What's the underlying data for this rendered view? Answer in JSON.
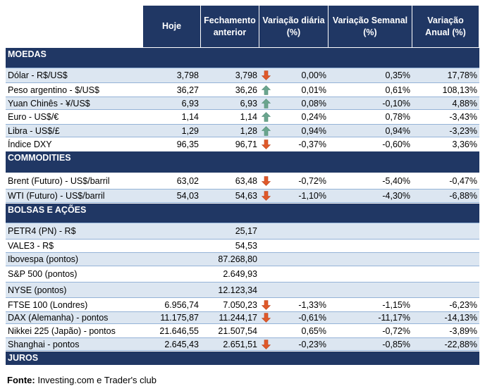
{
  "header": {
    "columns": [
      "Hoje",
      "Fechamento anterior",
      "Variação diária (%)",
      "Variação Semanal (%)",
      "Variação Anual (%)"
    ]
  },
  "sections": [
    {
      "title": "MOEDAS",
      "rows": [
        {
          "cells": [
            "Dólar - R$/US$",
            "3,798",
            "3,798",
            "0,00%",
            "0,35%",
            "17,78%"
          ],
          "arrow": "down"
        },
        {
          "cells": [
            "Peso argentino - $/US$",
            "36,27",
            "36,26",
            "0,01%",
            "0,61%",
            "108,13%"
          ],
          "arrow": "up"
        },
        {
          "cells": [
            "Yuan Chinês - ¥/US$",
            "6,93",
            "6,93",
            "0,08%",
            "-0,10%",
            "4,88%"
          ],
          "arrow": "up"
        },
        {
          "cells": [
            "Euro - US$/€",
            "1,14",
            "1,14",
            "0,24%",
            "0,78%",
            "-3,43%"
          ],
          "arrow": "up"
        },
        {
          "cells": [
            "Libra - US$/£",
            "1,29",
            "1,28",
            "0,94%",
            "0,94%",
            "-3,23%"
          ],
          "arrow": "up"
        },
        {
          "cells": [
            "Índice DXY",
            "96,35",
            "96,71",
            "-0,37%",
            "-0,60%",
            "3,36%"
          ],
          "arrow": "down"
        }
      ]
    },
    {
      "title": "COMMODITIES",
      "rows": [
        {
          "cells": [
            "Brent (Futuro) - US$/barril",
            "63,02",
            "63,48",
            "-0,72%",
            "-5,40%",
            "-0,47%"
          ],
          "arrow": "down"
        },
        {
          "cells": [
            "WTI (Futuro) - US$/barril",
            "54,03",
            "54,63",
            "-1,10%",
            "-4,30%",
            "-6,88%"
          ],
          "arrow": "down"
        }
      ]
    },
    {
      "title": "BOLSAS E AÇÕES",
      "rows": [
        {
          "cells": [
            "PETR4 (PN) - R$",
            null,
            "25,17",
            null,
            null,
            null
          ]
        },
        {
          "cells": [
            "VALE3 - R$",
            null,
            "54,53",
            null,
            null,
            null
          ]
        },
        {
          "cells": [
            "Ibovespa (pontos)",
            null,
            "87.268,80",
            null,
            null,
            null
          ]
        },
        {
          "cells": [
            "S&P 500 (pontos)",
            null,
            "2.649,93",
            null,
            null,
            null
          ]
        },
        {
          "cells": [
            "NYSE (pontos)",
            null,
            "12.123,34",
            null,
            null,
            null
          ]
        },
        {
          "cells": [
            "FTSE 100 (Londres)",
            "6.956,74",
            "7.050,23",
            "-1,33%",
            "-1,15%",
            "-6,23%"
          ],
          "arrow": "down"
        },
        {
          "cells": [
            "DAX (Alemanha) - pontos",
            "11.175,87",
            "11.244,17",
            "-0,61%",
            "-11,17%",
            "-14,13%"
          ],
          "arrow": "down"
        },
        {
          "cells": [
            "Nikkei 225 (Japão) - pontos",
            "21.646,55",
            "21.507,54",
            "0,65%",
            "-0,72%",
            "-3,89%"
          ]
        },
        {
          "cells": [
            "Shanghai - pontos",
            "2.645,43",
            "2.651,51",
            "-0,23%",
            "-0,85%",
            "-22,88%"
          ],
          "arrow": "down"
        }
      ]
    },
    {
      "title": "JUROS",
      "rows": []
    }
  ],
  "footer": {
    "label": "Fonte:",
    "text": "Investing.com e Trader's club"
  }
}
